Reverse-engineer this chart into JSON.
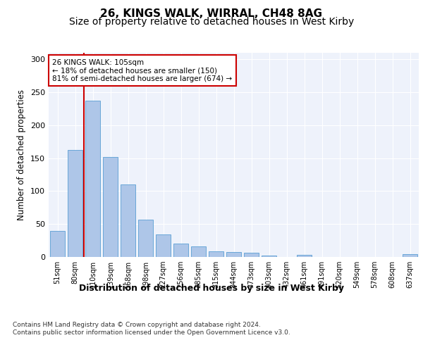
{
  "title": "26, KINGS WALK, WIRRAL, CH48 8AG",
  "subtitle": "Size of property relative to detached houses in West Kirby",
  "xlabel": "Distribution of detached houses by size in West Kirby",
  "ylabel": "Number of detached properties",
  "categories": [
    "51sqm",
    "80sqm",
    "110sqm",
    "139sqm",
    "168sqm",
    "198sqm",
    "227sqm",
    "256sqm",
    "285sqm",
    "315sqm",
    "344sqm",
    "373sqm",
    "403sqm",
    "432sqm",
    "461sqm",
    "491sqm",
    "520sqm",
    "549sqm",
    "578sqm",
    "608sqm",
    "637sqm"
  ],
  "values": [
    40,
    162,
    237,
    152,
    110,
    57,
    34,
    20,
    16,
    9,
    8,
    6,
    2,
    0,
    3,
    0,
    0,
    0,
    0,
    0,
    4
  ],
  "bar_color": "#aec6e8",
  "bar_edge_color": "#5a9fd4",
  "vline_x_index": 2,
  "vline_color": "#cc0000",
  "annotation_text": "26 KINGS WALK: 105sqm\n← 18% of detached houses are smaller (150)\n81% of semi-detached houses are larger (674) →",
  "annotation_box_color": "white",
  "annotation_box_edge_color": "#cc0000",
  "ylim": [
    0,
    310
  ],
  "yticks": [
    0,
    50,
    100,
    150,
    200,
    250,
    300
  ],
  "bg_color": "#eef2fb",
  "footer_text": "Contains HM Land Registry data © Crown copyright and database right 2024.\nContains public sector information licensed under the Open Government Licence v3.0.",
  "title_fontsize": 11,
  "subtitle_fontsize": 10,
  "xlabel_fontsize": 9,
  "ylabel_fontsize": 8.5
}
